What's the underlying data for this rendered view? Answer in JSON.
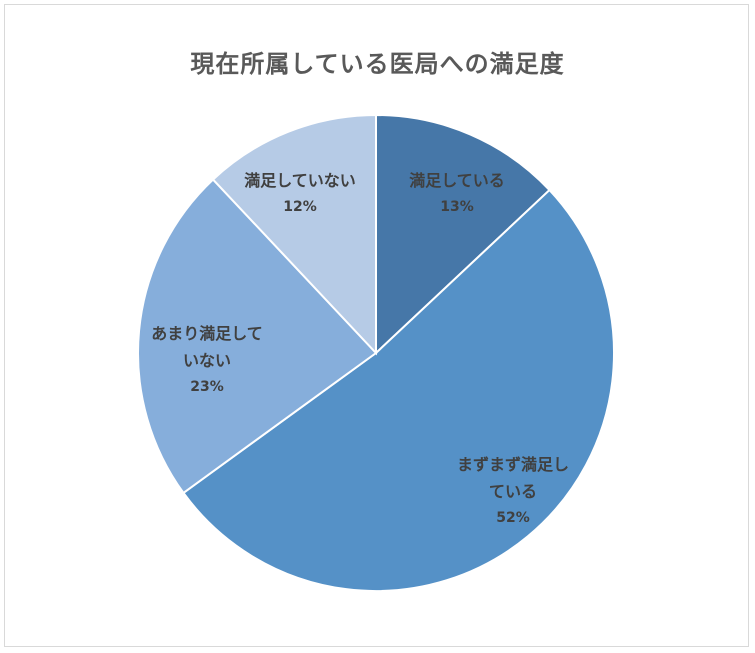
{
  "chart_data": {
    "type": "pie",
    "title": "現在所属している医局への満足度",
    "slices": [
      {
        "name": "満足している",
        "label_lines": [
          "満足している"
        ],
        "value": 13,
        "value_label": "13%",
        "color": "#4677a8"
      },
      {
        "name": "まずまず満足している",
        "label_lines": [
          "まずまず満足し",
          "ている"
        ],
        "value": 52,
        "value_label": "52%",
        "color": "#5591c7"
      },
      {
        "name": "あまり満足していない",
        "label_lines": [
          "あまり満足して",
          "いない"
        ],
        "value": 23,
        "value_label": "23%",
        "color": "#86aedb"
      },
      {
        "name": "満足していない",
        "label_lines": [
          "満足していない"
        ],
        "value": 12,
        "value_label": "12%",
        "color": "#b6cbe6"
      }
    ],
    "start_angle": "12 o'clock",
    "direction": "clockwise",
    "legend": "none"
  }
}
